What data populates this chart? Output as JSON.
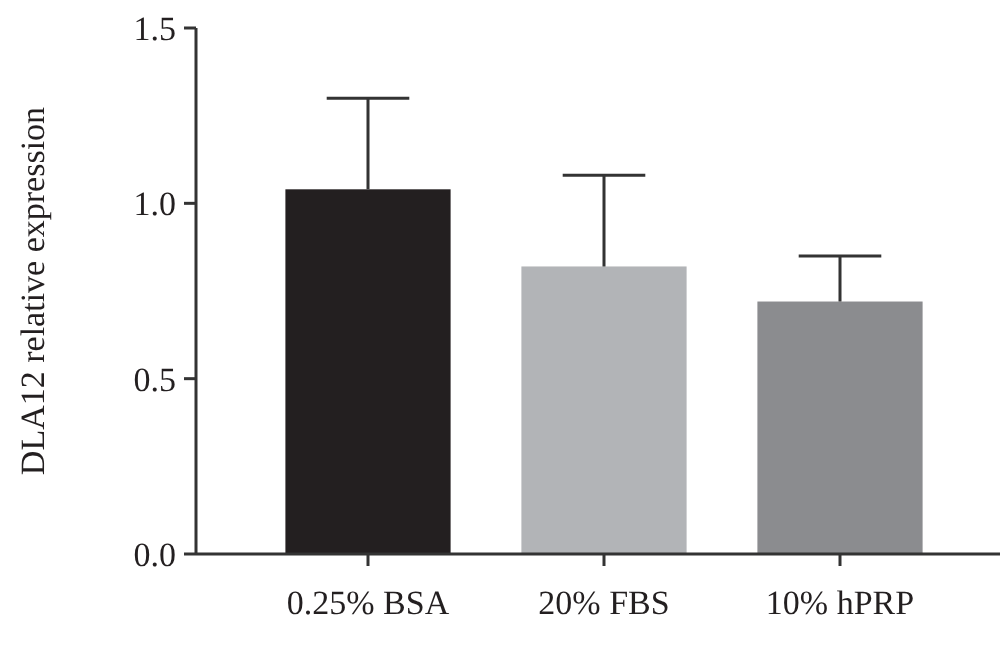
{
  "chart_data": {
    "type": "bar",
    "ylabel": "DLA12 relative expression",
    "categories": [
      "0.25% BSA",
      "20% FBS",
      "10% hPRP"
    ],
    "values": [
      1.04,
      0.82,
      0.72
    ],
    "colors": [
      "#231f20",
      "#b2b4b7",
      "#8b8c8f"
    ],
    "errors": [
      [
        1.04,
        1.3
      ],
      [
        0.82,
        1.08
      ],
      [
        0.72,
        0.85
      ]
    ],
    "ylim": [
      0,
      1.5
    ],
    "yticks": [
      {
        "value": 0,
        "label": "0.0"
      },
      {
        "value": 0.5,
        "label": "0.5"
      },
      {
        "value": 1,
        "label": "1.0"
      },
      {
        "value": 1.5,
        "label": "1.5"
      }
    ],
    "grid": false
  }
}
